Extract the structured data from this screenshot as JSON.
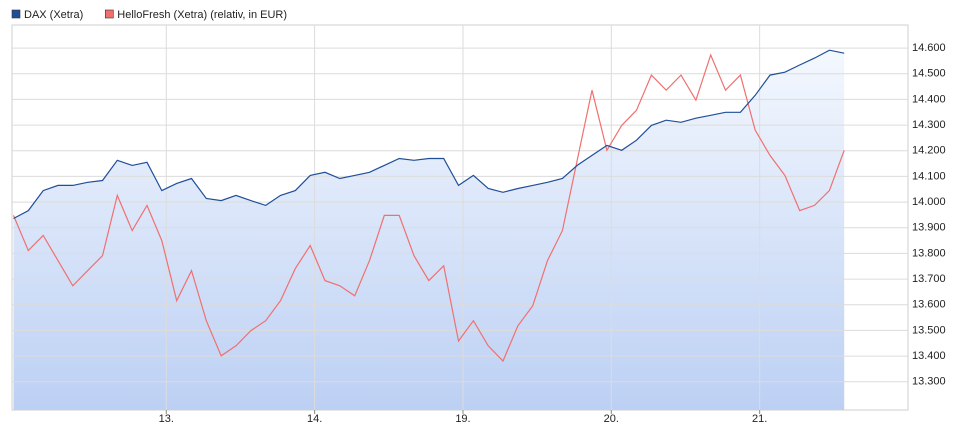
{
  "chart_data": {
    "type": "line",
    "x": [
      -0.03,
      0.07,
      0.17,
      0.27,
      0.37,
      0.47,
      0.57,
      0.67,
      0.77,
      0.87,
      0.97,
      1.07,
      1.17,
      1.27,
      1.37,
      1.47,
      1.57,
      1.67,
      1.77,
      1.87,
      1.97,
      2.07,
      2.17,
      2.27,
      2.37,
      2.47,
      2.57,
      2.67,
      2.77,
      2.87,
      2.97,
      3.07,
      3.17,
      3.27,
      3.37,
      3.47,
      3.57,
      3.67,
      3.77,
      3.87,
      3.97,
      4.07,
      4.17,
      4.27,
      4.37,
      4.47,
      4.57,
      4.67,
      4.77,
      4.87,
      4.97,
      5.07,
      5.17,
      5.27,
      5.37,
      5.47,
      5.57
    ],
    "series": [
      {
        "name": "DAX (Xetra)",
        "color": "#1f4e99",
        "values": [
          13936,
          13967,
          14045,
          14065,
          14065,
          14077,
          14084,
          14163,
          14143,
          14155,
          14045,
          14073,
          14092,
          14014,
          14006,
          14026,
          14006,
          13987,
          14026,
          14045,
          14104,
          14116,
          14092,
          14104,
          14116,
          14143,
          14170,
          14163,
          14170,
          14170,
          14065,
          14104,
          14053,
          14038,
          14053,
          14065,
          14077,
          14092,
          14143,
          14182,
          14221,
          14202,
          14241,
          14299,
          14319,
          14311,
          14327,
          14338,
          14350,
          14350,
          14416,
          14495,
          14506,
          14534,
          14561,
          14592,
          14580
        ]
      },
      {
        "name": "HelloFresh (Xetra) (relativ, in EUR)",
        "color": "#f07070",
        "values": [
          13948,
          13811,
          13870,
          13772,
          13674,
          13733,
          13791,
          14026,
          13889,
          13987,
          13850,
          13616,
          13733,
          13538,
          13401,
          13440,
          13499,
          13538,
          13616,
          13741,
          13831,
          13694,
          13674,
          13635,
          13772,
          13948,
          13948,
          13791,
          13694,
          13752,
          13459,
          13538,
          13440,
          13381,
          13518,
          13596,
          13772,
          13889,
          14163,
          14436,
          14202,
          14299,
          14358,
          14495,
          14436,
          14495,
          14397,
          14573,
          14436,
          14495,
          14280,
          14182,
          14104,
          13967,
          13987,
          14045,
          14202
        ]
      }
    ],
    "xlim": [
      -0.04,
      6.0
    ],
    "xticks": [
      {
        "value": 1,
        "label": "13."
      },
      {
        "value": 2,
        "label": "14."
      },
      {
        "value": 3,
        "label": "19."
      },
      {
        "value": 4,
        "label": "20."
      },
      {
        "value": 5,
        "label": "21."
      }
    ],
    "ylim": [
      13190,
      14690
    ],
    "yticks": [
      {
        "value": 13300,
        "label": "13.300"
      },
      {
        "value": 13400,
        "label": "13.400"
      },
      {
        "value": 13500,
        "label": "13.500"
      },
      {
        "value": 13600,
        "label": "13.600"
      },
      {
        "value": 13700,
        "label": "13.700"
      },
      {
        "value": 13800,
        "label": "13.800"
      },
      {
        "value": 13900,
        "label": "13.900"
      },
      {
        "value": 14000,
        "label": "14.000"
      },
      {
        "value": 14100,
        "label": "14.100"
      },
      {
        "value": 14200,
        "label": "14.200"
      },
      {
        "value": 14300,
        "label": "14.300"
      },
      {
        "value": 14400,
        "label": "14.400"
      },
      {
        "value": 14500,
        "label": "14.500"
      },
      {
        "value": 14600,
        "label": "14.600"
      }
    ],
    "grid": true,
    "legend": "top-left"
  }
}
